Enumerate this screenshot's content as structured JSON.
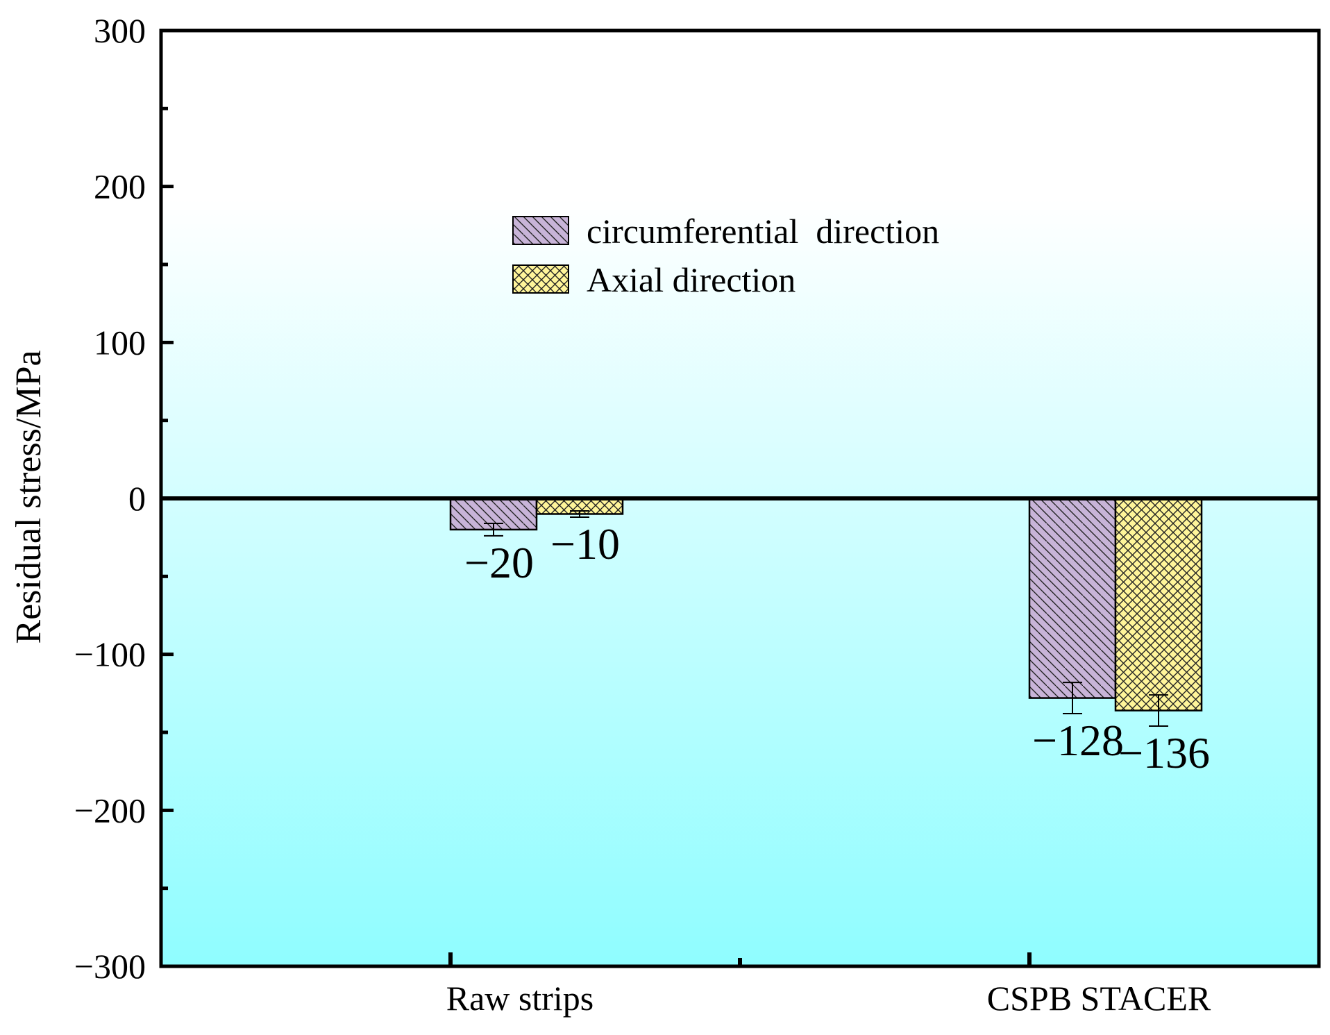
{
  "chart_data": {
    "type": "bar",
    "categories": [
      "Raw strips",
      "CSPB STACER"
    ],
    "series": [
      {
        "name": "circumferential  direction",
        "values": [
          -20,
          -128
        ],
        "errors": [
          4,
          10
        ],
        "color": "#c8b4d8",
        "pattern": "diagonal-hatch"
      },
      {
        "name": "Axial direction",
        "values": [
          -10,
          -136
        ],
        "errors": [
          2,
          10
        ],
        "color": "#fff59a",
        "pattern": "cross-hatch"
      }
    ],
    "data_labels": [
      [
        "−20",
        "−128"
      ],
      [
        "−10",
        "−136"
      ]
    ],
    "title": "",
    "xlabel": "",
    "ylabel": "Residual stress/MPa",
    "ylim": [
      -300,
      300
    ],
    "yticks": [
      300,
      200,
      100,
      0,
      -100,
      -200,
      -300
    ],
    "ytick_labels": [
      "300",
      "200",
      "100",
      "0",
      "−100",
      "−200",
      "−300"
    ],
    "background_gradient": [
      "#ffffff",
      "#8ffdff"
    ],
    "zero_line": true,
    "grid": false,
    "legend_position": "upper-center"
  }
}
